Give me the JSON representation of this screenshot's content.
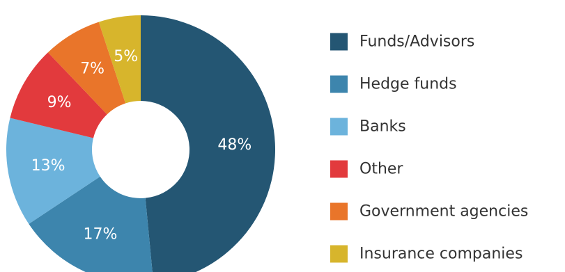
{
  "chart_data": {
    "type": "pie",
    "variant": "donut",
    "legend_position": "right",
    "slices": [
      {
        "label": "Funds/Advisors",
        "value": 48,
        "display": "48%",
        "color": "#245673"
      },
      {
        "label": "Hedge funds",
        "value": 17,
        "display": "17%",
        "color": "#3d85ad"
      },
      {
        "label": "Banks",
        "value": 13,
        "display": "13%",
        "color": "#6cb3dc"
      },
      {
        "label": "Other",
        "value": 9,
        "display": "9%",
        "color": "#e23a3d"
      },
      {
        "label": "Government agencies",
        "value": 7,
        "display": "7%",
        "color": "#e9752a"
      },
      {
        "label": "Insurance companies",
        "value": 5,
        "display": "5%",
        "color": "#d7b52c"
      }
    ]
  }
}
